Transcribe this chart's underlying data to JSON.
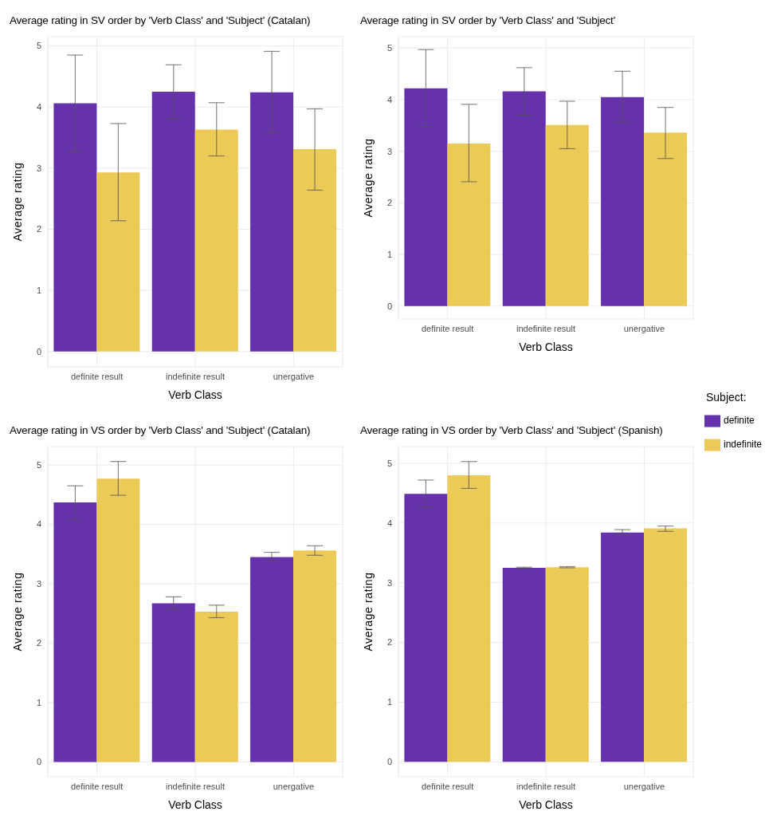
{
  "chart_data": [
    {
      "type": "bar",
      "title": "Average rating in SV order by 'Verb Class' and 'Subject' (Catalan)",
      "xlabel": "Verb Class",
      "ylabel": "Average rating",
      "categories": [
        "definite result",
        "indefinite result",
        "unergative"
      ],
      "ylim": [
        -0.25,
        5.15
      ],
      "yticks": [
        0,
        1,
        2,
        3,
        4,
        5
      ],
      "grid": true,
      "series": [
        {
          "color": "#6531ac",
          "values": [
            4.06,
            4.25,
            4.24
          ],
          "errors": [
            [
              3.27,
              4.85
            ],
            [
              3.81,
              4.69
            ],
            [
              3.58,
              4.91
            ]
          ]
        },
        {
          "color": "#ecca58",
          "values": [
            2.93,
            3.63,
            3.31
          ],
          "errors": [
            [
              2.14,
              3.73
            ],
            [
              3.2,
              4.07
            ],
            [
              2.64,
              3.97
            ]
          ]
        }
      ]
    },
    {
      "type": "bar",
      "title": "Average rating in SV order by 'Verb Class' and 'Subject'",
      "xlabel": "Verb Class",
      "ylabel": "Average rating",
      "legend_title": "Subject:",
      "legend": "right",
      "categories": [
        "definite result",
        "indefinite result",
        "unergative"
      ],
      "ylim": [
        -0.25,
        5.22
      ],
      "yticks": [
        0,
        1,
        2,
        3,
        4,
        5
      ],
      "grid": true,
      "series": [
        {
          "name": "definite",
          "color": "#6531ac",
          "values": [
            4.22,
            4.16,
            4.05
          ],
          "errors": [
            [
              3.47,
              4.97
            ],
            [
              3.7,
              4.62
            ],
            [
              3.56,
              4.55
            ]
          ]
        },
        {
          "name": "indefinite",
          "color": "#ecca58",
          "values": [
            3.15,
            3.51,
            3.36
          ],
          "errors": [
            [
              2.41,
              3.91
            ],
            [
              3.05,
              3.97
            ],
            [
              2.86,
              3.85
            ]
          ]
        }
      ]
    },
    {
      "type": "bar",
      "title": "Average rating in VS order by 'Verb Class' and 'Subject' (Catalan)",
      "xlabel": "Verb Class",
      "ylabel": "Average rating",
      "categories": [
        "definite result",
        "indefinite result",
        "unergative"
      ],
      "ylim": [
        -0.25,
        5.31
      ],
      "yticks": [
        0,
        1,
        2,
        3,
        4,
        5
      ],
      "grid": true,
      "series": [
        {
          "color": "#6531ac",
          "values": [
            4.37,
            2.67,
            3.45
          ],
          "errors": [
            [
              4.08,
              4.65
            ],
            [
              2.57,
              2.78
            ],
            [
              3.38,
              3.53
            ]
          ]
        },
        {
          "color": "#ecca58",
          "values": [
            4.77,
            2.53,
            3.56
          ],
          "errors": [
            [
              4.49,
              5.06
            ],
            [
              2.43,
              2.64
            ],
            [
              3.48,
              3.64
            ]
          ]
        }
      ]
    },
    {
      "type": "bar",
      "title": "Average rating in VS order by 'Verb Class' and 'Subject' (Spanish)",
      "xlabel": "Verb Class",
      "ylabel": "Average rating",
      "categories": [
        "definite result",
        "indefinite result",
        "unergative"
      ],
      "ylim": [
        -0.25,
        5.28
      ],
      "yticks": [
        0,
        1,
        2,
        3,
        4,
        5
      ],
      "grid": true,
      "series": [
        {
          "color": "#6531ac",
          "values": [
            4.49,
            3.25,
            3.84
          ],
          "errors": [
            [
              4.27,
              4.72
            ],
            [
              3.24,
              3.26
            ],
            [
              3.8,
              3.89
            ]
          ]
        },
        {
          "color": "#ecca58",
          "values": [
            4.8,
            3.26,
            3.91
          ],
          "errors": [
            [
              4.58,
              5.03
            ],
            [
              3.25,
              3.27
            ],
            [
              3.86,
              3.95
            ]
          ]
        }
      ]
    }
  ]
}
